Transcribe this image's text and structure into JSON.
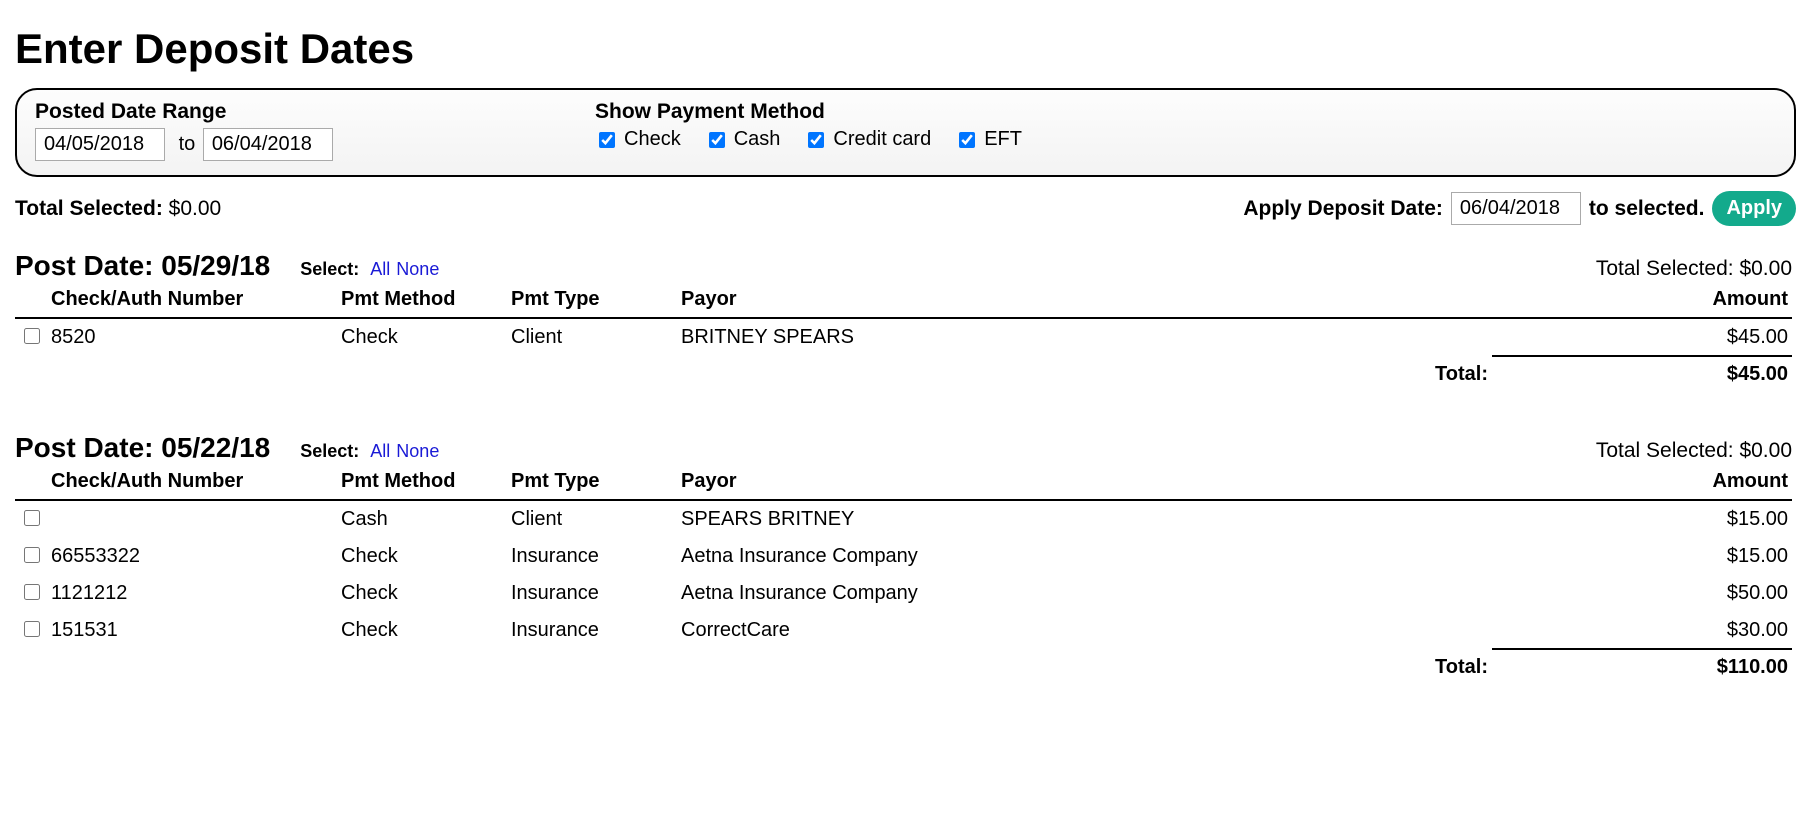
{
  "page_title": "Enter Deposit Dates",
  "filters": {
    "date_range_label": "Posted Date Range",
    "from": "04/05/2018",
    "to_sep": "to",
    "to": "06/04/2018",
    "pm_label": "Show Payment Method",
    "methods": [
      {
        "label": "Check",
        "checked": true
      },
      {
        "label": "Cash",
        "checked": true
      },
      {
        "label": "Credit card",
        "checked": true
      },
      {
        "label": "EFT",
        "checked": true
      }
    ]
  },
  "summary": {
    "total_selected_label": "Total Selected:",
    "total_selected_value": "$0.00",
    "apply_label_1": "Apply Deposit Date:",
    "apply_date": "06/04/2018",
    "apply_label_2": "to selected.",
    "apply_button": "Apply"
  },
  "columns": {
    "check": "Check/Auth Number",
    "method": "Pmt Method",
    "type": "Pmt Type",
    "payor": "Payor",
    "amount": "Amount"
  },
  "select_labels": {
    "prefix": "Select:",
    "all": "All",
    "none": "None"
  },
  "group_total_selected_label": "Total Selected:",
  "total_label": "Total:",
  "groups": [
    {
      "date_label": "Post Date: 05/29/18",
      "total_selected": "$0.00",
      "rows": [
        {
          "check": "8520",
          "method": "Check",
          "type": "Client",
          "payor": "BRITNEY SPEARS",
          "amount": "$45.00"
        }
      ],
      "total": "$45.00"
    },
    {
      "date_label": "Post Date: 05/22/18",
      "total_selected": "$0.00",
      "rows": [
        {
          "check": "",
          "method": "Cash",
          "type": "Client",
          "payor": "SPEARS BRITNEY",
          "amount": "$15.00"
        },
        {
          "check": "66553322",
          "method": "Check",
          "type": "Insurance",
          "payor": "Aetna Insurance Company",
          "amount": "$15.00"
        },
        {
          "check": "1121212",
          "method": "Check",
          "type": "Insurance",
          "payor": "Aetna Insurance Company",
          "amount": "$50.00"
        },
        {
          "check": "151531",
          "method": "Check",
          "type": "Insurance",
          "payor": "CorrectCare",
          "amount": "$30.00"
        }
      ],
      "total": "$110.00"
    }
  ],
  "colors": {
    "apply_button_bg": "#13aa8c",
    "link": "#1a1ad6"
  }
}
